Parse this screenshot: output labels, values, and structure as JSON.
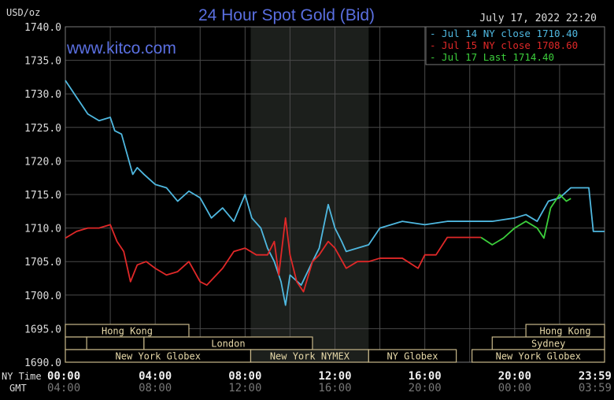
{
  "chart_data": {
    "type": "line",
    "title": "24 Hour Spot Gold (Bid)",
    "ylabel": "USD/oz",
    "watermark": "www.kitco.com",
    "timestamp": "July 17, 2022 22:20",
    "ylim": [
      1690,
      1740
    ],
    "xlim": [
      0,
      24
    ],
    "grid": true,
    "yticks": [
      "1690.0",
      "1695.0",
      "1700.0",
      "1705.0",
      "1710.0",
      "1715.0",
      "1720.0",
      "1725.0",
      "1730.0",
      "1735.0",
      "1740.0"
    ],
    "x_row1_label": "NY Time",
    "x_row2_label": "GMT",
    "xticks_ny": [
      "00:00",
      "04:00",
      "08:00",
      "12:00",
      "16:00",
      "20:00",
      "23:59"
    ],
    "xticks_gmt": [
      "04:00",
      "08:00",
      "12:00",
      "16:00",
      "20:00",
      "00:00",
      "03:59"
    ],
    "shaded_hours": [
      8.25,
      13.5
    ],
    "legend_position": "top-right",
    "series": [
      {
        "name": "Jul 14 NY close 1710.40",
        "color": "#4fb8e0",
        "x": [
          0,
          0.5,
          1,
          1.5,
          2,
          2.2,
          2.5,
          3,
          3.2,
          3.5,
          4,
          4.5,
          5,
          5.5,
          6,
          6.5,
          7,
          7.5,
          8,
          8.3,
          8.7,
          9,
          9.3,
          9.6,
          9.8,
          10,
          10.5,
          11,
          11.3,
          11.7,
          12,
          12.3,
          12.5,
          13,
          13.5,
          14,
          14.5,
          15,
          16,
          17,
          18,
          19,
          20,
          20.5,
          21,
          21.5,
          22,
          22.5,
          23,
          23.3,
          23.5,
          24
        ],
        "y": [
          1732,
          1729.5,
          1727,
          1726,
          1726.5,
          1724.5,
          1724,
          1718,
          1719,
          1718,
          1716.5,
          1716,
          1714,
          1715.5,
          1714.5,
          1711.5,
          1713,
          1711,
          1715,
          1711.5,
          1710,
          1707,
          1705,
          1702,
          1698.5,
          1703,
          1701.5,
          1705,
          1707,
          1713.5,
          1710,
          1708,
          1706.5,
          1707,
          1707.5,
          1710,
          1710.5,
          1711,
          1710.5,
          1711,
          1711,
          1711,
          1711.5,
          1712,
          1711,
          1714,
          1714.5,
          1716,
          1716,
          1716,
          1709.5,
          1709.5
        ]
      },
      {
        "name": "Jul 15 NY close 1708.60",
        "color": "#e02828",
        "x": [
          0,
          0.5,
          1,
          1.5,
          2,
          2.3,
          2.6,
          2.9,
          3.2,
          3.6,
          4,
          4.5,
          5,
          5.5,
          6,
          6.3,
          7,
          7.5,
          8,
          8.5,
          9,
          9.3,
          9.5,
          9.8,
          10,
          10.3,
          10.6,
          11,
          11.3,
          11.7,
          12,
          12.5,
          13,
          13.5,
          14,
          15,
          15.7,
          16,
          16.5,
          17,
          17.5,
          18.5
        ],
        "y": [
          1708.5,
          1709.5,
          1710,
          1710,
          1710.5,
          1708,
          1706.5,
          1702,
          1704.5,
          1705,
          1704,
          1703,
          1703.5,
          1705,
          1702,
          1701.5,
          1704,
          1706.5,
          1707,
          1706,
          1706,
          1708,
          1703,
          1711.5,
          1706,
          1702,
          1700.5,
          1705,
          1706,
          1708,
          1707,
          1704,
          1705,
          1705,
          1705.5,
          1705.5,
          1704,
          1706,
          1706,
          1708.6,
          1708.6,
          1708.6
        ]
      },
      {
        "name": "Jul 17 Last 1714.40",
        "color": "#3ccf3c",
        "x": [
          18.5,
          19,
          19.5,
          20,
          20.5,
          21,
          21.3,
          21.6,
          22,
          22.3,
          22.5
        ],
        "y": [
          1708.6,
          1707.5,
          1708.5,
          1710,
          1711,
          1710,
          1708.5,
          1713,
          1715,
          1714,
          1714.4
        ]
      }
    ],
    "sessions": [
      {
        "label": "Hong Kong",
        "row": 0,
        "start": 0,
        "end": 5.5,
        "show_label": true
      },
      {
        "label": "Hong Kong",
        "row": 0,
        "start": 20.5,
        "end": 24,
        "show_label": true
      },
      {
        "label": "",
        "row": 1,
        "start": 0,
        "end": 0.95,
        "show_label": false
      },
      {
        "label": "",
        "row": 1,
        "start": 0.95,
        "end": 3.5,
        "show_label": false
      },
      {
        "label": "London",
        "row": 1,
        "start": 3.5,
        "end": 11,
        "show_label": true
      },
      {
        "label": "Sydney",
        "row": 1,
        "start": 19,
        "end": 24,
        "show_label": true
      },
      {
        "label": "New York Globex",
        "row": 2,
        "start": 0,
        "end": 8.25,
        "show_label": true
      },
      {
        "label": "New York NYMEX",
        "row": 2,
        "start": 8.25,
        "end": 13.5,
        "show_label": true
      },
      {
        "label": "NY Globex",
        "row": 2,
        "start": 13.5,
        "end": 17.4,
        "show_label": true
      },
      {
        "label": "New York Globex",
        "row": 2,
        "start": 18.1,
        "end": 24,
        "show_label": true
      }
    ]
  }
}
